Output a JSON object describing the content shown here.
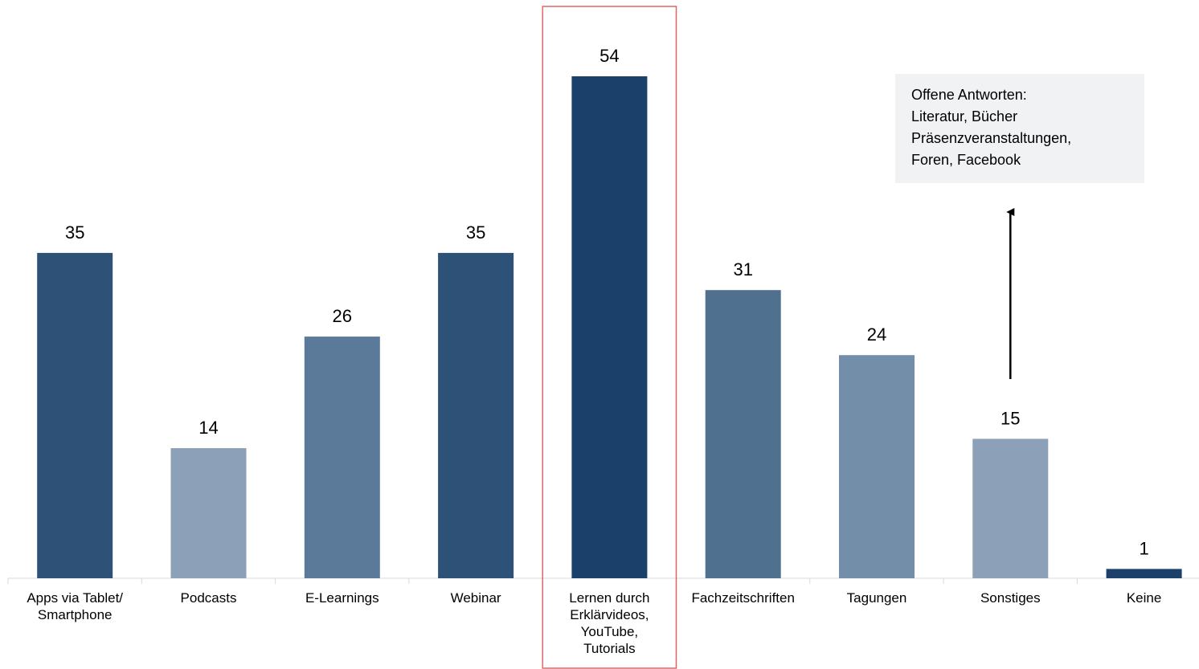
{
  "chart_data": {
    "type": "bar",
    "categories": [
      [
        "Apps via Tablet/",
        "Smartphone"
      ],
      [
        "Podcasts"
      ],
      [
        "E-Learnings"
      ],
      [
        "Webinar"
      ],
      [
        "Lernen durch",
        "Erklärvideos,",
        "YouTube,",
        "Tutorials"
      ],
      [
        "Fachzeitschriften"
      ],
      [
        "Tagungen"
      ],
      [
        "Sonstiges"
      ],
      [
        "Keine"
      ]
    ],
    "values": [
      35,
      14,
      26,
      35,
      54,
      31,
      24,
      15,
      1
    ],
    "bar_colors": [
      "#2e5277",
      "#8ca1b8",
      "#5b7998",
      "#2e5277",
      "#1b406a",
      "#507090",
      "#738ea9",
      "#8ca1b8",
      "#1b406a"
    ],
    "highlight_index": 4,
    "highlight_color": "#e06666",
    "ylim": [
      0,
      54
    ],
    "title": "",
    "xlabel": "",
    "ylabel": "",
    "grid": false,
    "legend": "none",
    "annotation": {
      "lines": [
        "Offene Antworten:",
        "Literatur, Bücher",
        "Präsenzveranstaltungen,",
        "Foren, Facebook"
      ],
      "background": "#f1f2f4",
      "arrow_from_category_index": 7
    }
  }
}
